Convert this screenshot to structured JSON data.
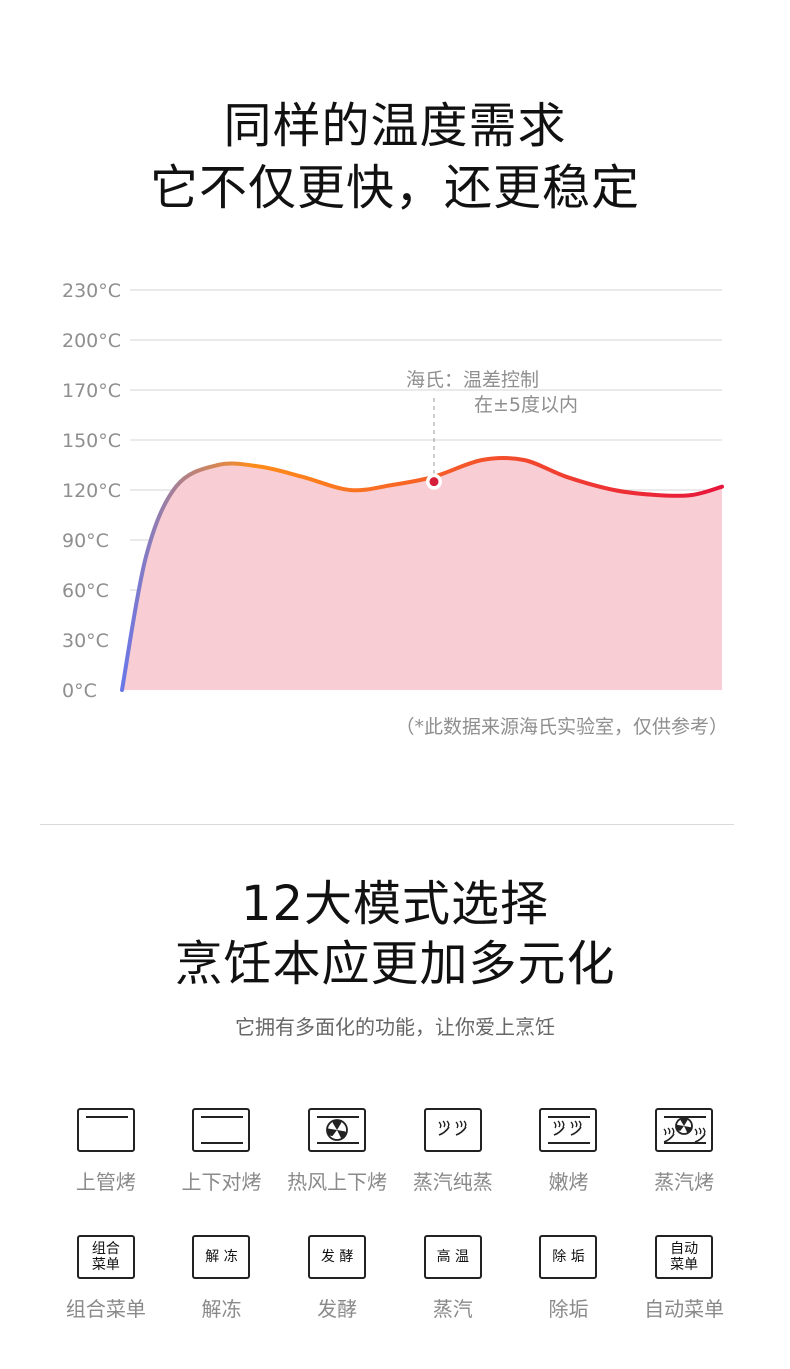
{
  "section1": {
    "headline_line1": "同样的温度需求",
    "headline_line2": "它不仅更快，还更稳定"
  },
  "chart_data": {
    "type": "area",
    "y_tick_labels": [
      "0°C",
      "30°C",
      "60°C",
      "90°C",
      "120°C",
      "150°C",
      "170°C",
      "200°C",
      "230°C"
    ],
    "y_tick_values": [
      0,
      30,
      60,
      90,
      120,
      150,
      170,
      200,
      230
    ],
    "series": [
      {
        "x": [
          0,
          0.04,
          0.09,
          0.16,
          0.23,
          0.3,
          0.38,
          0.45,
          0.52,
          0.6,
          0.67,
          0.74,
          0.82,
          0.89,
          0.95,
          1.0
        ],
        "values": [
          0,
          80,
          122,
          135,
          134,
          128,
          120,
          123,
          128,
          138,
          138,
          128,
          120,
          117,
          117,
          122
        ]
      }
    ],
    "annotation": {
      "line1": "海氏：温差控制",
      "line2": "在±5度以内",
      "x": 0.52,
      "value": 125
    },
    "grid": true,
    "colors": {
      "start": "#6a77e8",
      "mid": "#ff8c1a",
      "end": "#e8163c",
      "fill": "#f9cdd4"
    },
    "source_note": "（*此数据来源海氏实验室，仅供参考）"
  },
  "section2": {
    "headline_line1": "12大模式选择",
    "headline_line2": "烹饪本应更加多元化",
    "subtitle": "它拥有多面化的功能，让你爱上烹饪"
  },
  "modes": [
    {
      "label": "上管烤",
      "icon": "top-heat-icon",
      "box_text": ""
    },
    {
      "label": "上下对烤",
      "icon": "top-bottom-heat-icon",
      "box_text": ""
    },
    {
      "label": "热风上下烤",
      "icon": "fan-heat-icon",
      "box_text": ""
    },
    {
      "label": "蒸汽纯蒸",
      "icon": "steam-icon",
      "box_text": ""
    },
    {
      "label": "嫩烤",
      "icon": "tender-roast-icon",
      "box_text": ""
    },
    {
      "label": "蒸汽烤",
      "icon": "steam-fan-icon",
      "box_text": ""
    },
    {
      "label": "组合菜单",
      "icon": "combo-menu-icon",
      "box_text": "组合\n菜单"
    },
    {
      "label": "解冻",
      "icon": "defrost-icon",
      "box_text": "解 冻"
    },
    {
      "label": "发酵",
      "icon": "ferment-icon",
      "box_text": "发 酵"
    },
    {
      "label": "蒸汽",
      "icon": "steam-only-icon",
      "box_text": "高 温"
    },
    {
      "label": "除垢",
      "icon": "descale-icon",
      "box_text": "除 垢"
    },
    {
      "label": "自动菜单",
      "icon": "auto-menu-icon",
      "box_text": "自动\n菜单"
    }
  ]
}
